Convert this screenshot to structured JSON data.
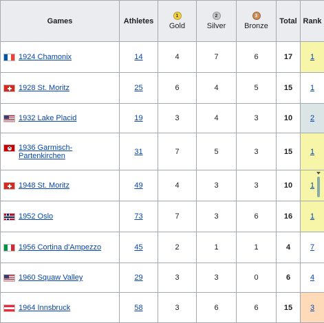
{
  "headers": {
    "games": "Games",
    "athletes": "Athletes",
    "gold": "Gold",
    "gold_medal": "1",
    "silver": "Silver",
    "silver_medal": "2",
    "bronze": "Bronze",
    "bronze_medal": "3",
    "total": "Total",
    "rank": "Rank"
  },
  "rows": [
    {
      "flag": "france-flag-icon",
      "games": "1924 Chamonix",
      "athletes": "14",
      "gold": "4",
      "silver": "7",
      "bronze": "6",
      "total": "17",
      "rank": "1",
      "rank_color": "#f7f6a8"
    },
    {
      "flag": "switzerland-flag-icon",
      "games": "1928 St. Moritz",
      "athletes": "25",
      "gold": "6",
      "silver": "4",
      "bronze": "5",
      "total": "15",
      "rank": "1",
      "rank_color": "#f7f6a8"
    },
    {
      "flag": "usa-flag-icon",
      "games": "1932 Lake Placid",
      "athletes": "19",
      "gold": "3",
      "silver": "4",
      "bronze": "3",
      "total": "10",
      "rank": "2",
      "rank_color": "#dce5e5"
    },
    {
      "flag": "germany-flag-icon",
      "games": "1936 Garmisch-Partenkirchen",
      "athletes": "31",
      "gold": "7",
      "silver": "5",
      "bronze": "3",
      "total": "15",
      "rank": "1",
      "rank_color": "#f7f6a8"
    },
    {
      "flag": "switzerland-flag-icon",
      "games": "1948 St. Moritz",
      "athletes": "49",
      "gold": "4",
      "silver": "3",
      "bronze": "3",
      "total": "10",
      "rank": "1",
      "rank_color": "#f7f6a8"
    },
    {
      "flag": "norway-flag-icon",
      "games": "1952 Oslo",
      "athletes": "73",
      "gold": "7",
      "silver": "3",
      "bronze": "6",
      "total": "16",
      "rank": "1",
      "rank_color": "#f7f6a8"
    },
    {
      "flag": "italy-flag-icon",
      "games": "1956 Cortina d'Ampezzo",
      "athletes": "45",
      "gold": "2",
      "silver": "1",
      "bronze": "1",
      "total": "4",
      "rank": "7",
      "rank_color": "#ffffff"
    },
    {
      "flag": "usa-flag-icon",
      "games": "1960 Squaw Valley",
      "athletes": "29",
      "gold": "3",
      "silver": "3",
      "bronze": "0",
      "total": "6",
      "rank": "4",
      "rank_color": "#ffffff"
    },
    {
      "flag": "austria-flag-icon",
      "games": "1964 Innsbruck",
      "athletes": "58",
      "gold": "3",
      "silver": "6",
      "bronze": "6",
      "total": "15",
      "rank": "3",
      "rank_color": "#ffdab9"
    }
  ]
}
